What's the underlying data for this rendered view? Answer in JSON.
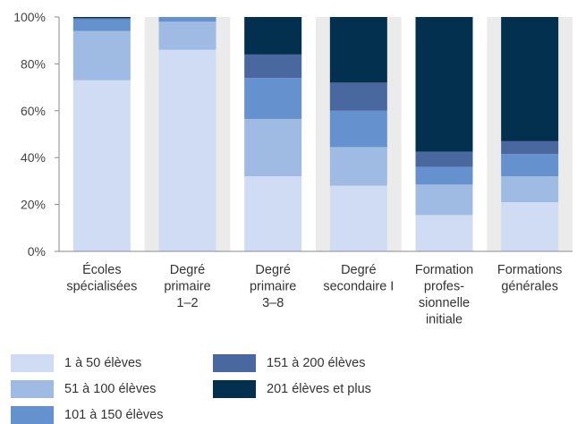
{
  "chart_data": {
    "type": "bar",
    "stacked": true,
    "percent": true,
    "categories": [
      [
        "Écoles",
        "spécialisées"
      ],
      [
        "Degré",
        "primaire",
        "1–2"
      ],
      [
        "Degré",
        "primaire",
        "3–8"
      ],
      [
        "Degré",
        "secondaire I"
      ],
      [
        "Formation",
        "profes-",
        "sionnelle",
        "initiale"
      ],
      [
        "Formations",
        "générales"
      ]
    ],
    "yticks": [
      "0%",
      "20%",
      "40%",
      "60%",
      "80%",
      "100%"
    ],
    "ylim": [
      0,
      100
    ],
    "series": [
      {
        "name": "1 à 50 élèves",
        "color": "#cfdcf3",
        "values": [
          73,
          86,
          32,
          28,
          15.5,
          21
        ]
      },
      {
        "name": "51 à 100 élèves",
        "color": "#9fbbe3",
        "values": [
          21,
          12,
          24.5,
          16.5,
          13,
          11
        ]
      },
      {
        "name": "101 à 150 élèves",
        "color": "#6592cf",
        "values": [
          5,
          2,
          17.5,
          15.5,
          7.5,
          9.5
        ]
      },
      {
        "name": "151 à 200 élèves",
        "color": "#48689f",
        "values": [
          0.5,
          0,
          10,
          12,
          6.5,
          5.5
        ]
      },
      {
        "name": "201 élèves et plus",
        "color": "#03304f",
        "values": [
          0.5,
          0,
          16,
          28,
          57.5,
          53
        ]
      }
    ],
    "grid": false,
    "legend_position": "bottom"
  }
}
